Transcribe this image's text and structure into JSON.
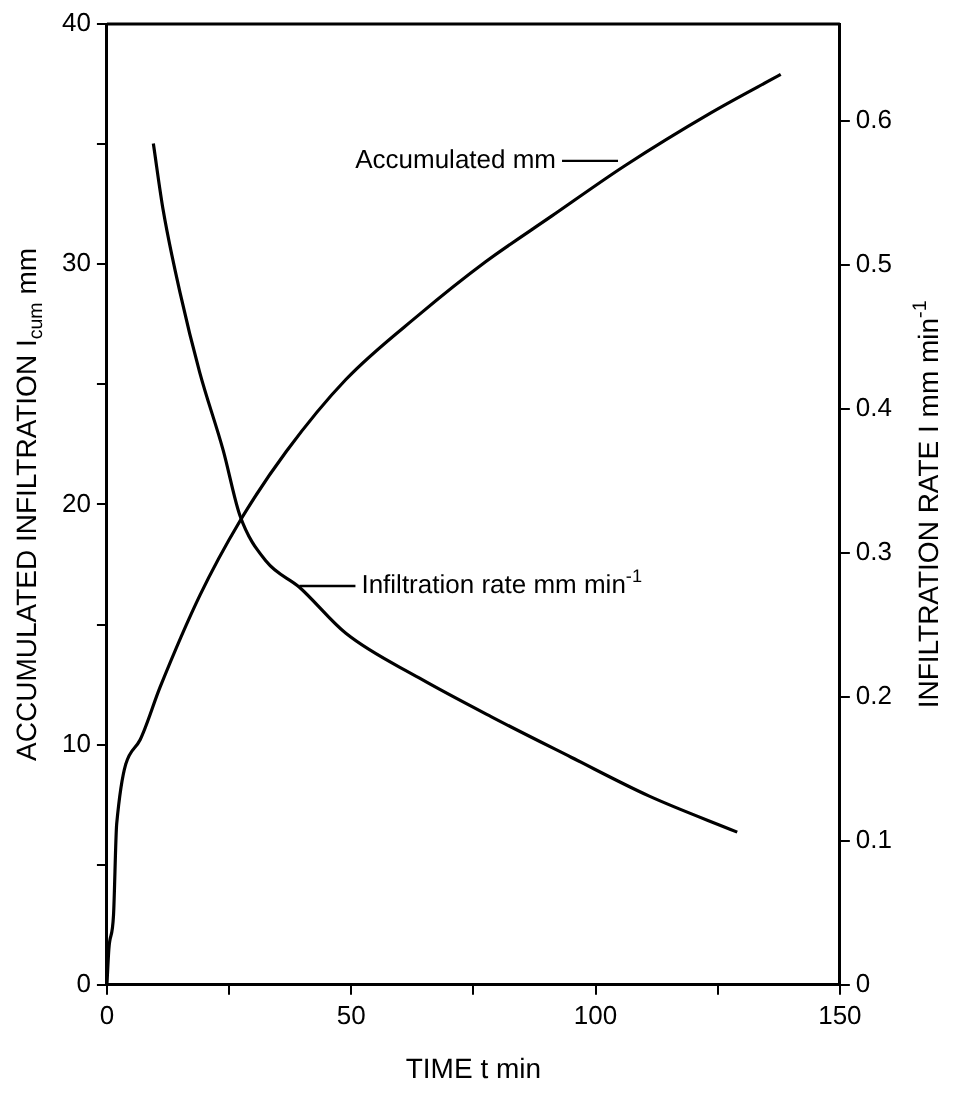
{
  "chart_data": {
    "type": "line",
    "xlabel": "TIME t min",
    "ylabel": "ACCUMULATED INFILTRATION I$_{cum}$ mm",
    "y2label": "INFILTRATION RATE I mm min$^{-1}$",
    "xlim": [
      0,
      150
    ],
    "xticks": [
      0,
      {
        "value": 25,
        "label": null
      },
      50,
      {
        "value": 75,
        "label": null
      },
      100,
      {
        "value": 125,
        "label": null
      },
      150
    ],
    "ylim": [
      0,
      40
    ],
    "yticks": [
      0,
      {
        "value": 5,
        "label": null
      },
      10,
      {
        "value": 15,
        "label": null
      },
      20,
      {
        "value": 25,
        "label": null
      },
      30,
      {
        "value": 35,
        "label": null
      },
      40
    ],
    "y2lim": [
      0,
      0.667
    ],
    "y2ticks": [
      0,
      0.1,
      0.2,
      0.3,
      0.4,
      0.5,
      0.6
    ],
    "grid": false,
    "legend": false,
    "marker": "none",
    "line_style": "solid",
    "series": [
      {
        "color": "#000000",
        "x": [
          0,
          0.4,
          1.35,
          2,
          6.8,
          10.9,
          19,
          27.2,
          36.7,
          48.9,
          63.9,
          77.5,
          91,
          106,
          123.6,
          137.9
        ],
        "values": [
          0,
          1.5,
          2.9,
          6.7,
          10.2,
          12.4,
          16.2,
          19.3,
          22.2,
          25.2,
          27.9,
          30.1,
          32,
          34.1,
          36.3,
          37.9
        ]
      },
      {
        "color": "#000000",
        "axis": "y2",
        "x": [
          9.5,
          11.5,
          15,
          19,
          23.8,
          27.2,
          32.6,
          39.4,
          48.9,
          63.9,
          78.7,
          95,
          111,
          129
        ],
        "values": [
          0.584,
          0.538,
          0.48,
          0.425,
          0.371,
          0.326,
          0.294,
          0.276,
          0.244,
          0.213,
          0.186,
          0.158,
          0.131,
          0.106
        ]
      }
    ],
    "annotations": [
      {
        "text": "Accumulated mm",
        "x": 104.6,
        "y": 34.3
      },
      {
        "text": "Infiltration rate mm min$^{-1}$",
        "x": 39.4,
        "y": 16.6
      }
    ]
  }
}
